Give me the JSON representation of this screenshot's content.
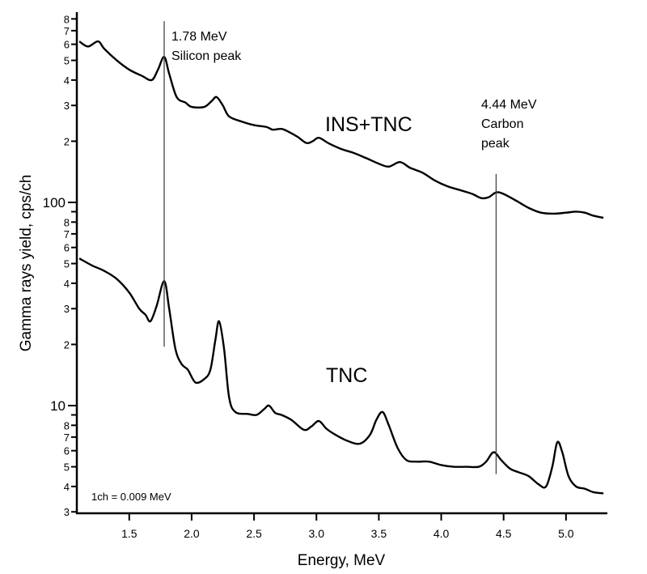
{
  "chart_data": {
    "type": "line",
    "title": "",
    "xlabel": "Energy, MeV",
    "ylabel": "Gamma rays yield, cps/ch",
    "xlim": [
      1.08,
      5.33
    ],
    "ylim": [
      3,
      850
    ],
    "yscale": "log",
    "grid": false,
    "x_ticks": [
      "1.5",
      "2.0",
      "2.5",
      "3.0",
      "3.5",
      "4.0",
      "4.5",
      "5.0"
    ],
    "y_major_ticks": [
      {
        "value": 10,
        "label": "10"
      },
      {
        "value": 100,
        "label": "100"
      }
    ],
    "y_minor_ticks": [
      {
        "value": 3,
        "label": "3"
      },
      {
        "value": 4,
        "label": "4"
      },
      {
        "value": 5,
        "label": "5"
      },
      {
        "value": 6,
        "label": "6"
      },
      {
        "value": 7,
        "label": "7"
      },
      {
        "value": 8,
        "label": "8"
      },
      {
        "value": 9,
        "label": ""
      },
      {
        "value": 20,
        "label": "2"
      },
      {
        "value": 30,
        "label": "3"
      },
      {
        "value": 40,
        "label": "4"
      },
      {
        "value": 50,
        "label": "5"
      },
      {
        "value": 60,
        "label": "6"
      },
      {
        "value": 70,
        "label": "7"
      },
      {
        "value": 80,
        "label": "8"
      },
      {
        "value": 90,
        "label": ""
      },
      {
        "value": 200,
        "label": "2"
      },
      {
        "value": 300,
        "label": "3"
      },
      {
        "value": 400,
        "label": "4"
      },
      {
        "value": 500,
        "label": "5"
      },
      {
        "value": 600,
        "label": "6"
      },
      {
        "value": 700,
        "label": "7"
      },
      {
        "value": 800,
        "label": "8"
      }
    ],
    "series": [
      {
        "name": "INS+TNC",
        "x": [
          1.1,
          1.17,
          1.25,
          1.3,
          1.4,
          1.5,
          1.6,
          1.68,
          1.73,
          1.78,
          1.82,
          1.88,
          1.95,
          2.0,
          2.1,
          2.16,
          2.2,
          2.25,
          2.3,
          2.4,
          2.5,
          2.6,
          2.65,
          2.72,
          2.78,
          2.85,
          2.92,
          2.97,
          3.02,
          3.1,
          3.2,
          3.3,
          3.4,
          3.5,
          3.58,
          3.67,
          3.75,
          3.85,
          3.95,
          4.05,
          4.15,
          4.25,
          4.32,
          4.38,
          4.44,
          4.5,
          4.6,
          4.7,
          4.8,
          4.9,
          5.0,
          5.08,
          5.15,
          5.22,
          5.3
        ],
        "values": [
          620,
          585,
          620,
          570,
          500,
          450,
          420,
          400,
          450,
          520,
          430,
          330,
          310,
          295,
          295,
          315,
          330,
          300,
          265,
          250,
          240,
          235,
          228,
          230,
          222,
          210,
          196,
          200,
          208,
          195,
          183,
          175,
          165,
          155,
          150,
          158,
          148,
          140,
          128,
          120,
          115,
          110,
          105,
          106,
          112,
          110,
          102,
          94,
          89,
          88,
          89,
          90,
          89,
          86,
          84
        ]
      },
      {
        "name": "TNC",
        "x": [
          1.1,
          1.2,
          1.3,
          1.4,
          1.5,
          1.58,
          1.63,
          1.67,
          1.72,
          1.78,
          1.82,
          1.87,
          1.92,
          1.97,
          2.03,
          2.1,
          2.15,
          2.19,
          2.22,
          2.26,
          2.3,
          2.35,
          2.45,
          2.52,
          2.58,
          2.62,
          2.67,
          2.72,
          2.8,
          2.9,
          2.96,
          3.02,
          3.08,
          3.15,
          3.25,
          3.35,
          3.43,
          3.48,
          3.53,
          3.58,
          3.65,
          3.72,
          3.8,
          3.9,
          4.0,
          4.1,
          4.2,
          4.3,
          4.36,
          4.42,
          4.48,
          4.55,
          4.62,
          4.7,
          4.78,
          4.84,
          4.89,
          4.93,
          4.97,
          5.02,
          5.08,
          5.15,
          5.22,
          5.3
        ],
        "values": [
          53,
          49,
          46,
          42,
          36,
          30,
          28,
          26,
          31,
          41,
          30,
          19,
          16,
          15,
          13,
          13.5,
          15,
          21,
          26,
          19,
          11,
          9.3,
          9.1,
          9.0,
          9.6,
          10,
          9.2,
          9.0,
          8.5,
          7.6,
          7.9,
          8.4,
          7.7,
          7.2,
          6.7,
          6.5,
          7.2,
          8.5,
          9.3,
          8.0,
          6.2,
          5.4,
          5.3,
          5.3,
          5.1,
          5.0,
          5.0,
          5.0,
          5.3,
          5.9,
          5.4,
          4.9,
          4.7,
          4.5,
          4.1,
          4.0,
          5.0,
          6.6,
          5.9,
          4.5,
          4.0,
          3.9,
          3.75,
          3.7
        ]
      }
    ],
    "annotations": [
      {
        "x": 1.78,
        "line_from": 19.5,
        "line_to": 780,
        "lines": [
          "1.78 MeV",
          "Silicon peak"
        ]
      },
      {
        "x": 4.44,
        "line_from": 4.6,
        "line_to": 138,
        "lines": [
          "4.44 MeV",
          "Carbon",
          "peak"
        ]
      },
      {
        "text": "INS+TNC"
      },
      {
        "text": "TNC"
      },
      {
        "text": "1ch = 0.009 MeV"
      }
    ]
  }
}
